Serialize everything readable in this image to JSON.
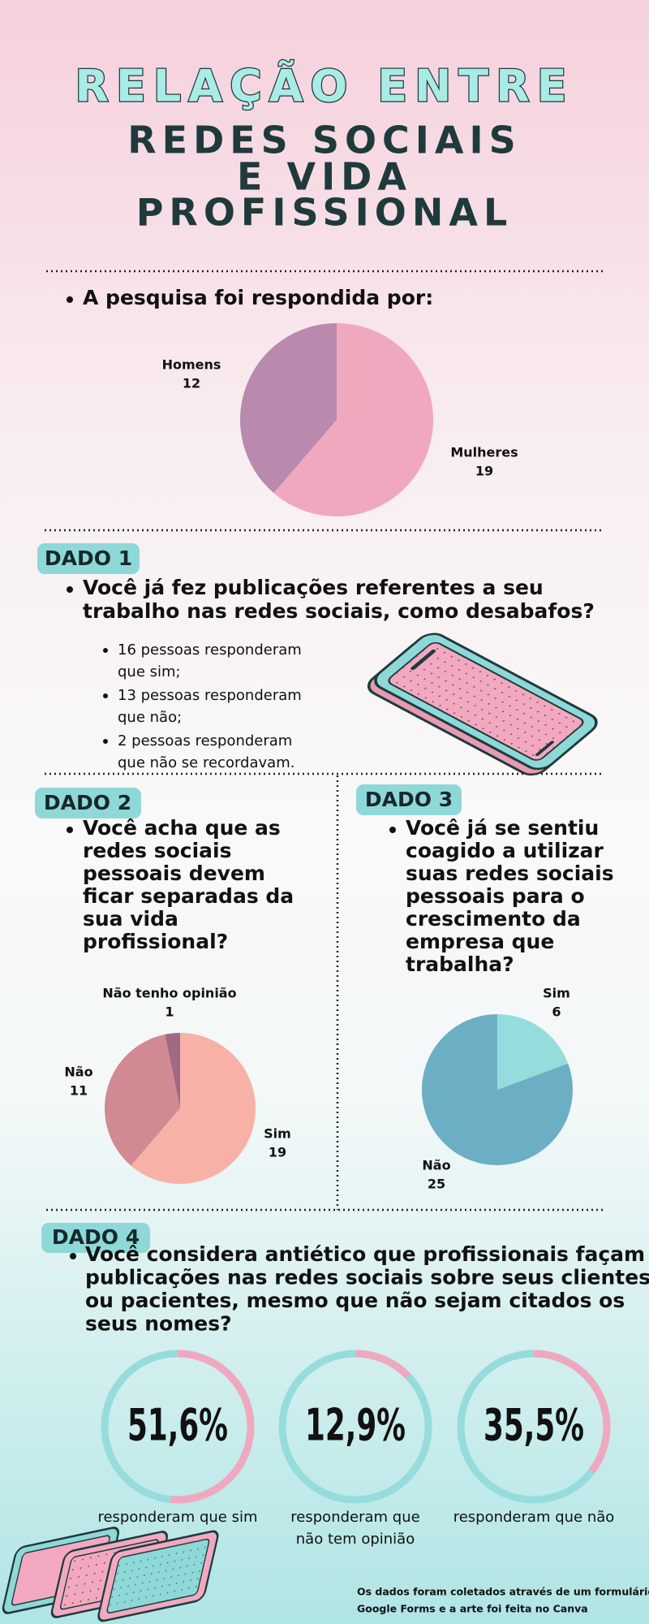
{
  "header": {
    "title_line1": "RELAÇÃO ENTRE",
    "title_lines": [
      "REDES SOCIAIS",
      "E VIDA",
      "PROFISSIONAL"
    ]
  },
  "survey": {
    "heading": "A pesquisa foi respondida por:",
    "chart": {
      "type": "pie",
      "categories": [
        "Homens",
        "Mulheres"
      ],
      "values": [
        12,
        19
      ],
      "colors": [
        "#b98aad",
        "#f0a8bf"
      ]
    }
  },
  "dado1": {
    "badge": "DADO 1",
    "question_lines": [
      "Você já fez publicações referentes a seu",
      "trabalho nas redes sociais, como desabafos?"
    ],
    "answers": [
      [
        "16 pessoas responderam",
        "que sim;"
      ],
      [
        "13 pessoas responderam",
        "que não;"
      ],
      [
        "2 pessoas responderam",
        "que não se recordavam."
      ]
    ]
  },
  "dado2": {
    "badge": "DADO 2",
    "question_lines": [
      "Você acha que as",
      "redes sociais",
      "pessoais devem",
      "ficar separadas da",
      "sua vida",
      "profissional?"
    ],
    "chart": {
      "type": "pie",
      "categories": [
        "Não tenho opinião",
        "Não",
        "Sim"
      ],
      "values": [
        1,
        11,
        19
      ],
      "colors": [
        "#a06a85",
        "#d18a92",
        "#f7b1a6"
      ]
    }
  },
  "dado3": {
    "badge": "DADO 3",
    "question_lines": [
      "Você já se sentiu",
      "coagido a utilizar",
      "suas redes sociais",
      "pessoais para o",
      "crescimento da",
      "empresa que",
      "trabalha?"
    ],
    "chart": {
      "type": "pie",
      "categories": [
        "Sim",
        "Não"
      ],
      "values": [
        6,
        25
      ],
      "colors": [
        "#95dcdc",
        "#6cafc4"
      ]
    }
  },
  "dado4": {
    "badge": "DADO 4",
    "question_lines": [
      "Você considera antiético que profissionais façam",
      "publicações nas redes sociais sobre seus clientes",
      "ou pacientes, mesmo que não sejam citados os",
      "seus nomes?"
    ],
    "results": [
      {
        "value": 51.6,
        "label": "51,6%",
        "caption_lines": [
          "responderam que sim"
        ]
      },
      {
        "value": 12.9,
        "label": "12,9%",
        "caption_lines": [
          "responderam que",
          "não tem opinião"
        ]
      },
      {
        "value": 35.5,
        "label": "35,5%",
        "caption_lines": [
          "responderam que não"
        ]
      }
    ]
  },
  "footer": {
    "lines": [
      "Os dados foram coletados através de um formulário do",
      "Google Forms e a arte foi feita no Canva"
    ]
  }
}
